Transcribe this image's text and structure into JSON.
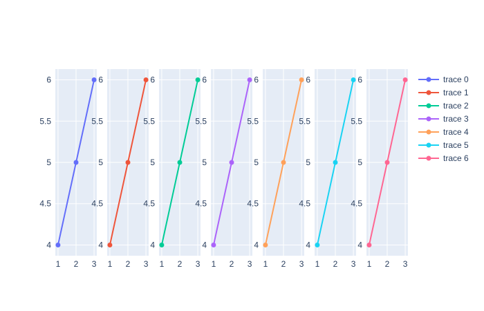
{
  "chart_data": {
    "type": "line",
    "x": [
      1,
      2,
      3
    ],
    "series": [
      {
        "name": "trace 0",
        "values": [
          4,
          5,
          6
        ]
      },
      {
        "name": "trace 1",
        "values": [
          4,
          5,
          6
        ]
      },
      {
        "name": "trace 2",
        "values": [
          4,
          5,
          6
        ]
      },
      {
        "name": "trace 3",
        "values": [
          4,
          5,
          6
        ]
      },
      {
        "name": "trace 4",
        "values": [
          4,
          5,
          6
        ]
      },
      {
        "name": "trace 5",
        "values": [
          4,
          5,
          6
        ]
      },
      {
        "name": "trace 6",
        "values": [
          4,
          5,
          6
        ]
      }
    ],
    "xticks": [
      1,
      2,
      3
    ],
    "yticks": [
      "4",
      "4.5",
      "5",
      "5.5",
      "6"
    ],
    "xlim": [
      0.85,
      3.15
    ],
    "ylim": [
      3.87,
      6.13
    ],
    "grid": true,
    "legend_position": "right",
    "colors": [
      "#636efa",
      "#EF553B",
      "#00cc96",
      "#ab63fa",
      "#FFA15A",
      "#19d3f3",
      "#FF6692"
    ],
    "plot_background": "#E5ECF6"
  }
}
